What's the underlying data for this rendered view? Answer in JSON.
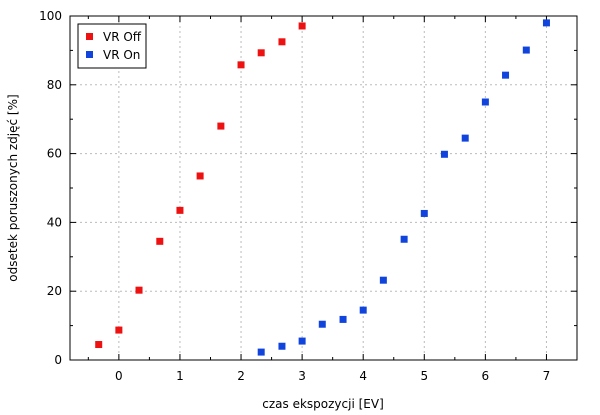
{
  "chart_data": {
    "type": "scatter",
    "xlabel": "czas ekspozycji [EV]",
    "ylabel": "odsetek poruszonych zdjęć [%]",
    "xlim": [
      -0.8,
      7.5
    ],
    "ylim": [
      0,
      100
    ],
    "x_ticks": [
      "0",
      "1",
      "2",
      "3",
      "4",
      "5",
      "6",
      "7"
    ],
    "y_ticks": [
      "0",
      "20",
      "40",
      "60",
      "80",
      "100"
    ],
    "grid": true,
    "legend_position": "top-left",
    "series": [
      {
        "name": "VR Off",
        "color": "#ee1111",
        "marker": "square",
        "x": [
          -0.33,
          0,
          0.33,
          0.67,
          1,
          1.33,
          1.67,
          2,
          2.33,
          2.67,
          3
        ],
        "y": [
          4.5,
          8.7,
          20.3,
          34.5,
          43.5,
          53.5,
          68,
          85.8,
          89.3,
          92.5,
          97.1
        ]
      },
      {
        "name": "VR On",
        "color": "#1144dd",
        "marker": "square",
        "x": [
          2.33,
          2.67,
          3,
          3.33,
          3.67,
          4,
          4.33,
          4.67,
          5,
          5.33,
          5.67,
          6,
          6.33,
          6.67,
          7
        ],
        "y": [
          2.3,
          4,
          5.5,
          10.4,
          11.8,
          14.5,
          23.2,
          35.1,
          42.6,
          59.8,
          64.5,
          75,
          82.8,
          90.1,
          98
        ]
      }
    ]
  }
}
